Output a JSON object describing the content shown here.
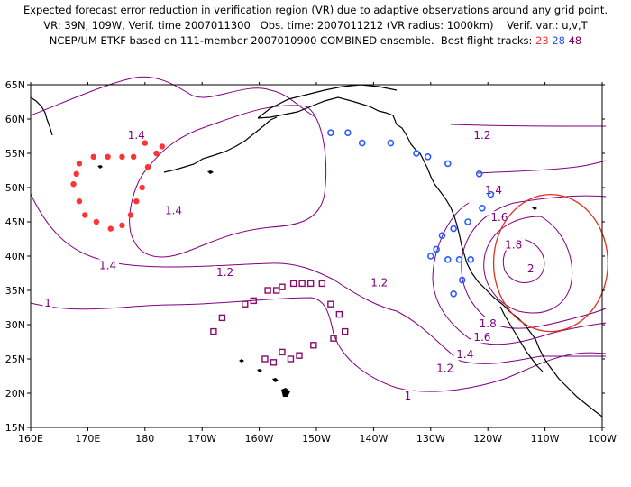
{
  "header": {
    "line1": "Expected forecast error reduction in verification region (VR) due to adaptive observations around any grid point.",
    "line2": "VR: 39N, 109W, Verif. time 2007011300   Obs. time: 2007011212 (VR radius: 1000km)    Verif. var.: u,v,T",
    "line3_prefix": "NCEP/UM ETKF based on 111-member 2007010900 COMBINED ensemble.  Best flight tracks: ",
    "track_labels": [
      "23",
      "28",
      "48"
    ]
  },
  "colors": {
    "contour": "#800080",
    "coast": "#000000",
    "track23": "#ff3333",
    "track28": "#2a5cff",
    "track48": "#8a0a6a",
    "vr_circle": "#e03020"
  },
  "axes": {
    "x_ticks": [
      "160E",
      "170E",
      "180",
      "170W",
      "160W",
      "150W",
      "140W",
      "130W",
      "120W",
      "110W",
      "100W"
    ],
    "y_ticks": [
      "65N",
      "60N",
      "55N",
      "50N",
      "45N",
      "40N",
      "35N",
      "30N",
      "25N",
      "20N",
      "15N"
    ],
    "lon_range": [
      160,
      260
    ],
    "lat_range": [
      15,
      65
    ]
  },
  "contour_labels": [
    {
      "text": "1.4",
      "lon": 178.5,
      "lat": 57.5
    },
    {
      "text": "1.4",
      "lon": 185,
      "lat": 46.5
    },
    {
      "text": "1.4",
      "lon": 173.5,
      "lat": 38.5
    },
    {
      "text": "1.2",
      "lon": 194,
      "lat": 37.5
    },
    {
      "text": "1.2",
      "lon": 221,
      "lat": 36.0
    },
    {
      "text": "1",
      "lon": 163,
      "lat": 33.0
    },
    {
      "text": "1.2",
      "lon": 239,
      "lat": 57.5
    },
    {
      "text": "1.4",
      "lon": 241,
      "lat": 49.5
    },
    {
      "text": "1.6",
      "lon": 242,
      "lat": 45.5
    },
    {
      "text": "1.8",
      "lon": 244.5,
      "lat": 41.5
    },
    {
      "text": "2",
      "lon": 247.5,
      "lat": 38.0
    },
    {
      "text": "1.8",
      "lon": 240,
      "lat": 30.0
    },
    {
      "text": "1.6",
      "lon": 239,
      "lat": 28.0
    },
    {
      "text": "1.4",
      "lon": 236,
      "lat": 25.5
    },
    {
      "text": "1.2",
      "lon": 232.5,
      "lat": 23.5
    },
    {
      "text": "1",
      "lon": 226,
      "lat": 19.5
    }
  ],
  "tracks": {
    "t23": [
      [
        183.0,
        56
      ],
      [
        182.0,
        55
      ],
      [
        180.5,
        53
      ],
      [
        179.5,
        50
      ],
      [
        178.5,
        48
      ],
      [
        177.5,
        46
      ],
      [
        176.0,
        44.5
      ],
      [
        174.0,
        44
      ],
      [
        171.5,
        45
      ],
      [
        169.5,
        46
      ],
      [
        168.5,
        48
      ],
      [
        167.5,
        50.5
      ],
      [
        168.0,
        52
      ],
      [
        168.5,
        53.5
      ],
      [
        171.0,
        54.5
      ],
      [
        173.5,
        54.5
      ],
      [
        176.0,
        54.5
      ],
      [
        178.0,
        54.5
      ],
      [
        180.0,
        56.5
      ]
    ],
    "t28": [
      [
        212.5,
        58
      ],
      [
        215.5,
        58
      ],
      [
        218.0,
        56.5
      ],
      [
        223.0,
        56.5
      ],
      [
        227.5,
        55
      ],
      [
        229.5,
        54.5
      ],
      [
        233.0,
        53.5
      ],
      [
        238.5,
        52
      ],
      [
        240.5,
        49
      ],
      [
        239.0,
        47
      ],
      [
        236.5,
        45
      ],
      [
        234.0,
        44
      ],
      [
        232.0,
        43
      ],
      [
        231.0,
        41
      ],
      [
        230.0,
        40
      ],
      [
        233.0,
        39.5
      ],
      [
        235.0,
        39.5
      ],
      [
        237.0,
        39.5
      ],
      [
        235.5,
        36.5
      ],
      [
        234.0,
        34.5
      ]
    ],
    "t48": [
      [
        192.0,
        29
      ],
      [
        193.5,
        31
      ],
      [
        197.5,
        33
      ],
      [
        199.0,
        33.5
      ],
      [
        201.5,
        35
      ],
      [
        203.0,
        35
      ],
      [
        204.0,
        35.5
      ],
      [
        206.0,
        36
      ],
      [
        207.5,
        36
      ],
      [
        209.0,
        36
      ],
      [
        211.0,
        36
      ],
      [
        212.5,
        33
      ],
      [
        214.0,
        31.5
      ],
      [
        215.0,
        29
      ],
      [
        213.0,
        28
      ],
      [
        209.5,
        27
      ],
      [
        207.0,
        25.5
      ],
      [
        205.5,
        25
      ],
      [
        204.0,
        26
      ],
      [
        202.5,
        24.5
      ],
      [
        201.0,
        25
      ]
    ]
  },
  "vr_circle": {
    "lon": 251,
    "lat": 39,
    "r_lon": 10,
    "r_lat": 10
  }
}
